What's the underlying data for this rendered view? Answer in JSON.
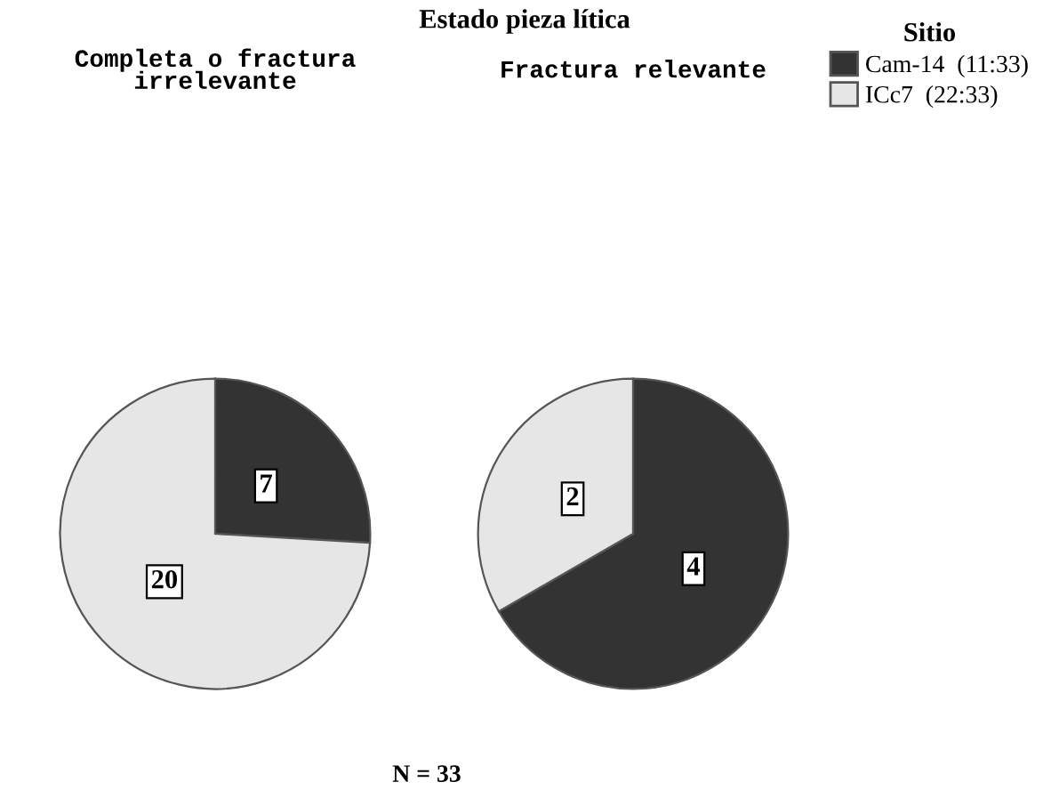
{
  "chart_data": [
    {
      "type": "pie",
      "subtitle": "Completa o fractura\nirrelevante",
      "categories": [
        null,
        null
      ],
      "values": [
        7,
        20
      ],
      "colors": [
        "#333333",
        "#e6e6e6"
      ],
      "data_labels": true,
      "legend": false,
      "annotations": [
        "N = 33"
      ]
    },
    {
      "type": "pie",
      "title": "Estado pieza lítica",
      "subtitle": "Fractura relevante",
      "categories": [
        "Cam-14  (11:33)",
        "ICc7  (22:33)"
      ],
      "values": [
        4,
        2
      ],
      "colors": [
        "#333333",
        "#e6e6e6"
      ],
      "data_labels": true,
      "legend": "top right",
      "legend_title": "Sitio"
    }
  ]
}
